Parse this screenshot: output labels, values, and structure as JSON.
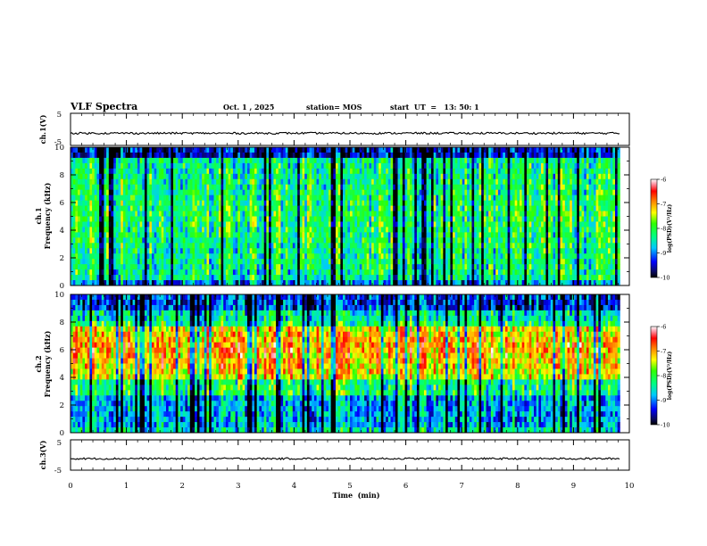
{
  "header": {
    "title": "VLF Spectra",
    "date": "Oct. 1 , 2025",
    "station": "station= MOS",
    "start": "start  UT  =   13: 50: 1"
  },
  "chart_data": [
    {
      "id": "ch1-voltage",
      "type": "line",
      "ylabel": "ch.1(V)",
      "ylim": [
        -5,
        5
      ],
      "yticklabels": [
        "5",
        "-5"
      ],
      "level": -1.2,
      "xlim": [
        0,
        10
      ]
    },
    {
      "id": "ch1-spectrogram",
      "type": "heatmap",
      "ylabel": [
        "ch.1",
        "Frequency (kHz)"
      ],
      "ylim": [
        0,
        10
      ],
      "yticklabels": [
        "10",
        "8",
        "6",
        "4",
        "2",
        "0"
      ],
      "data_end_min": 9.83,
      "colorbar": {
        "label": "log(PSD)(V²/Hz)",
        "range": [
          -10,
          -6
        ],
        "ticklabels": [
          "-6",
          "-7",
          "-8",
          "-9",
          "-10"
        ]
      }
    },
    {
      "id": "ch2-spectrogram",
      "type": "heatmap",
      "ylabel": [
        "ch.2",
        "Frequency (kHz)"
      ],
      "ylim": [
        0,
        10
      ],
      "yticklabels": [
        "10",
        "8",
        "6",
        "4",
        "2",
        "0"
      ],
      "data_end_min": 9.83,
      "colorbar": {
        "label": "log(PSD)(V²/Hz)",
        "range": [
          -10,
          -6
        ],
        "ticklabels": [
          "-6",
          "-7",
          "-8",
          "-9",
          "-10"
        ]
      }
    },
    {
      "id": "ch3-voltage",
      "type": "line",
      "ylabel": "ch.3(V)",
      "ylim": [
        -5,
        5
      ],
      "yticklabels": [
        "5",
        "-5"
      ],
      "level": -1.2,
      "xlim": [
        0,
        10
      ]
    }
  ],
  "xaxis": {
    "label": "Time  (min)",
    "range": [
      0,
      10
    ],
    "ticklabels": [
      "0",
      "1",
      "2",
      "3",
      "4",
      "5",
      "6",
      "7",
      "8",
      "9",
      "10"
    ]
  }
}
